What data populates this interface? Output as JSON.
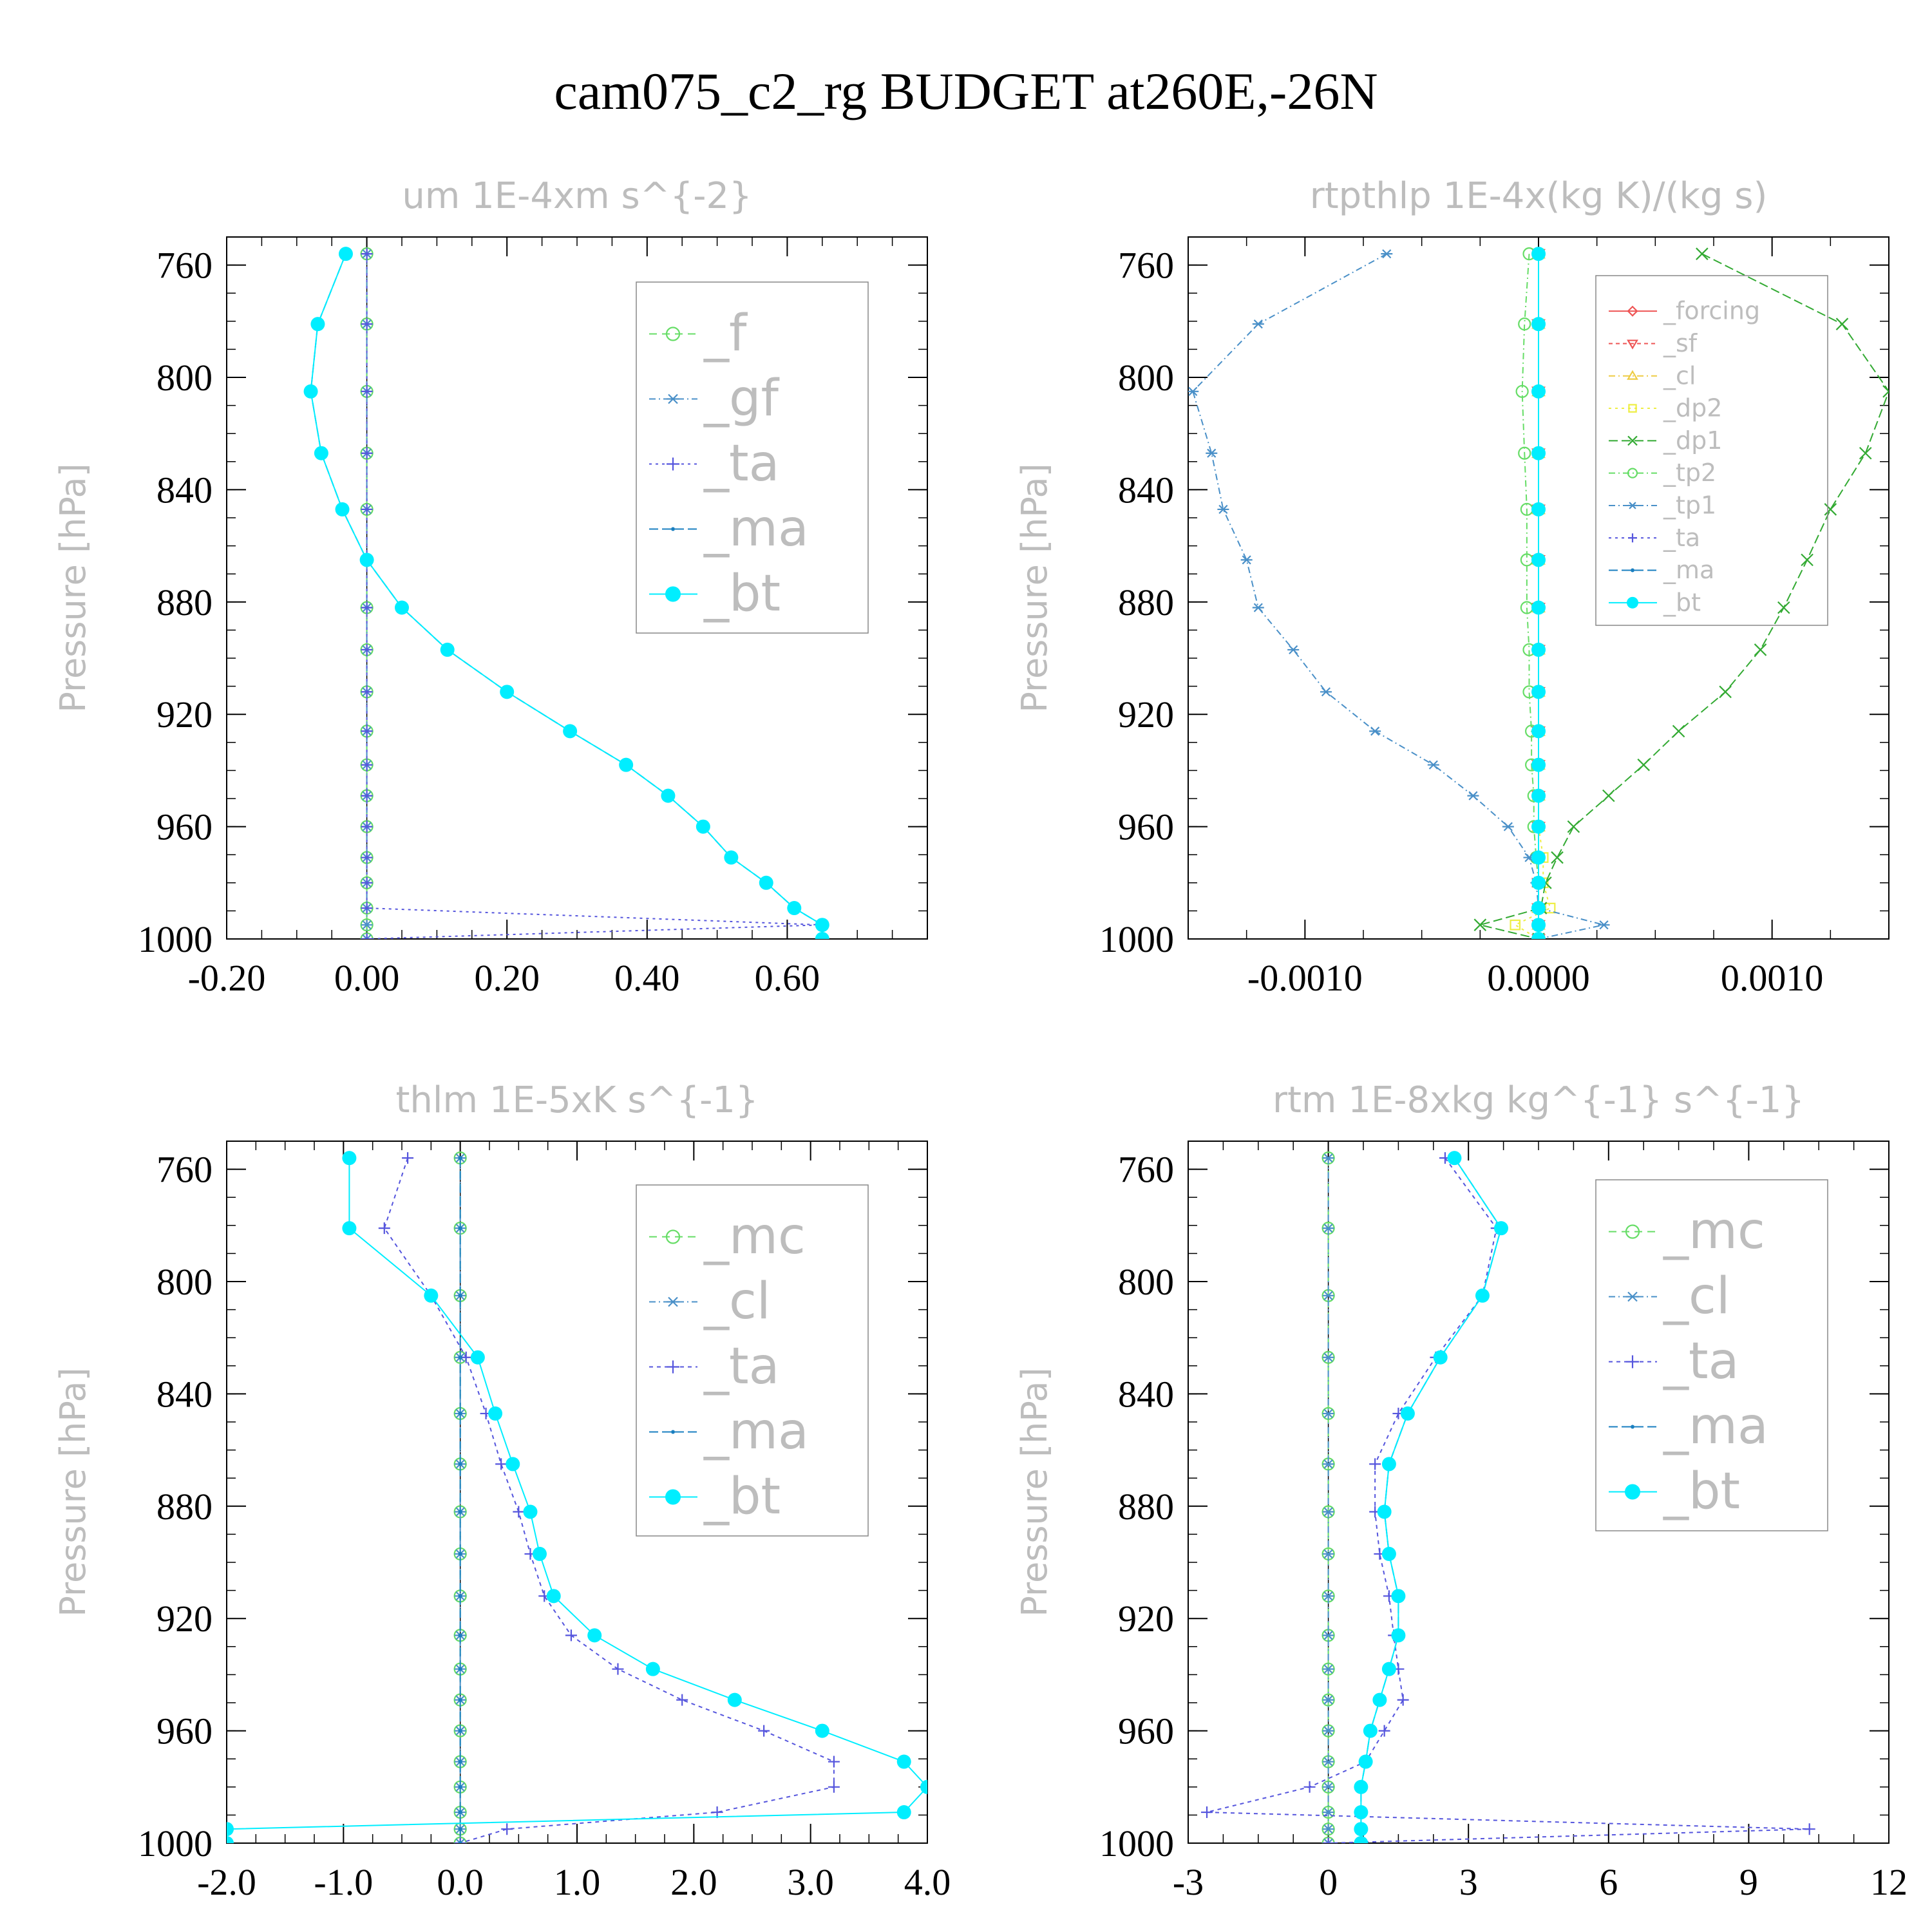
{
  "title": "cam075_c2_rg  BUDGET at260E,-26N",
  "chart_data": [
    {
      "type": "line",
      "title": "um  1E-4xm s^{-2}",
      "ylabel": "Pressure [hPa]",
      "xlim": [
        -0.2,
        0.8
      ],
      "ylim": [
        1000,
        750
      ],
      "xticks": [
        -0.2,
        0.0,
        0.2,
        0.4,
        0.6
      ],
      "xtick_labels": [
        "-0.20",
        "0.00",
        "0.20",
        "0.40",
        "0.60"
      ],
      "yticks": [
        760,
        800,
        840,
        880,
        920,
        960,
        1000
      ],
      "ytick_labels": [
        "760",
        "800",
        "840",
        "880",
        "920",
        "960",
        "1000"
      ],
      "legend": "inside right",
      "levels": [
        756,
        781,
        805,
        827,
        847,
        865,
        882,
        897,
        912,
        926,
        938,
        949,
        960,
        971,
        980,
        989,
        995,
        1000
      ],
      "series": [
        {
          "name": "_f",
          "color": "#66dd66",
          "marker": "circle-open",
          "dash": "12,8",
          "values": [
            0,
            0,
            0,
            0,
            0,
            0,
            0,
            0,
            0,
            0,
            0,
            0,
            0,
            0,
            0,
            0,
            0,
            0
          ]
        },
        {
          "name": "_gf",
          "color": "#4a90c8",
          "marker": "star",
          "dash": "10,5,2,5",
          "values": [
            0,
            0,
            0,
            0,
            0,
            0,
            0,
            0,
            0,
            0,
            0,
            0,
            0,
            0,
            0,
            0,
            0,
            0
          ]
        },
        {
          "name": "_ta",
          "color": "#5555dd",
          "marker": "plus",
          "dash": "4,6",
          "values": [
            0,
            0,
            0,
            0,
            0,
            0,
            0,
            0,
            0,
            0,
            0,
            0,
            0,
            0,
            0,
            0,
            0.65,
            0
          ]
        },
        {
          "name": "_ma",
          "color": "#1a7fc0",
          "marker": "dot",
          "dash": "14,6",
          "values": [
            -0.03,
            -0.07,
            -0.08,
            -0.065,
            -0.035,
            0,
            0.05,
            0.115,
            0.2,
            0.29,
            0.37,
            0.43,
            0.48,
            0.52,
            0.57,
            0.61,
            0.65,
            0.65
          ]
        },
        {
          "name": "_bt",
          "color": "#00eeff",
          "marker": "filled",
          "dash": "",
          "values": [
            -0.03,
            -0.07,
            -0.08,
            -0.065,
            -0.035,
            0,
            0.05,
            0.115,
            0.2,
            0.29,
            0.37,
            0.43,
            0.48,
            0.52,
            0.57,
            0.61,
            0.65,
            0.65
          ]
        }
      ]
    },
    {
      "type": "line",
      "title": "rtpthlp  1E-4x(kg K)/(kg s)",
      "ylabel": "Pressure [hPa]",
      "xlim": [
        -0.0015,
        0.0015
      ],
      "ylim": [
        1000,
        750
      ],
      "xticks": [
        -0.001,
        0.0,
        0.001
      ],
      "xtick_labels": [
        "-0.0010",
        "0.0000",
        "0.0010"
      ],
      "yticks": [
        760,
        800,
        840,
        880,
        920,
        960,
        1000
      ],
      "ytick_labels": [
        "760",
        "800",
        "840",
        "880",
        "920",
        "960",
        "1000"
      ],
      "legend": "inside right",
      "levels": [
        756,
        781,
        805,
        827,
        847,
        865,
        882,
        897,
        912,
        926,
        938,
        949,
        960,
        971,
        980,
        989,
        995,
        1000
      ],
      "series": [
        {
          "name": "_forcing",
          "color": "#ee5555",
          "marker": "diamond",
          "dash": "",
          "values": [
            0,
            0,
            0,
            0,
            0,
            0,
            0,
            0,
            0,
            0,
            0,
            0,
            0,
            0,
            0,
            0,
            0,
            0
          ]
        },
        {
          "name": "_sf",
          "color": "#ee5555",
          "marker": "tri-down",
          "dash": "6,5",
          "values": [
            0,
            0,
            0,
            0,
            0,
            0,
            0,
            0,
            0,
            0,
            0,
            0,
            0,
            0,
            0,
            0,
            0,
            0
          ]
        },
        {
          "name": "_cl",
          "color": "#eecc44",
          "marker": "tri-up",
          "dash": "10,5,2,5",
          "values": [
            0,
            0,
            0,
            0,
            0,
            0,
            0,
            0,
            0,
            0,
            0,
            0,
            0,
            0,
            0,
            0,
            0,
            0
          ]
        },
        {
          "name": "_dp2",
          "color": "#eeee44",
          "marker": "square",
          "dash": "4,6",
          "values": [
            0,
            0,
            0,
            0,
            0,
            0,
            0,
            0,
            0,
            0,
            0,
            0,
            0,
            2e-05,
            2e-05,
            5e-05,
            -0.0001,
            0
          ]
        },
        {
          "name": "_dp1",
          "color": "#33aa33",
          "marker": "x",
          "dash": "14,6",
          "values": [
            0.0007,
            0.0013,
            0.0015,
            0.0014,
            0.00125,
            0.00115,
            0.00105,
            0.00095,
            0.0008,
            0.0006,
            0.00045,
            0.0003,
            0.00015,
            8e-05,
            3e-05,
            1e-05,
            -0.00025,
            0
          ]
        },
        {
          "name": "_tp2",
          "color": "#66dd66",
          "marker": "circle-open",
          "dash": "10,5,2,5",
          "values": [
            -4e-05,
            -6e-05,
            -7e-05,
            -6e-05,
            -5e-05,
            -5e-05,
            -5e-05,
            -4e-05,
            -4e-05,
            -3e-05,
            -3e-05,
            -2e-05,
            -2e-05,
            -1e-05,
            0,
            0,
            0,
            0
          ]
        },
        {
          "name": "_tp1",
          "color": "#4a90c8",
          "marker": "star",
          "dash": "10,5,2,5",
          "values": [
            -0.00065,
            -0.0012,
            -0.00148,
            -0.0014,
            -0.00135,
            -0.00125,
            -0.0012,
            -0.00105,
            -0.00091,
            -0.0007,
            -0.00045,
            -0.00028,
            -0.00013,
            -4e-05,
            -1e-05,
            0,
            0.00028,
            0
          ]
        },
        {
          "name": "_ta",
          "color": "#5555dd",
          "marker": "plus",
          "dash": "4,6",
          "values": [
            0,
            0,
            0,
            0,
            0,
            0,
            0,
            0,
            0,
            0,
            0,
            0,
            0,
            0,
            0,
            0,
            0,
            0
          ]
        },
        {
          "name": "_ma",
          "color": "#1a7fc0",
          "marker": "dot",
          "dash": "14,6",
          "values": [
            0,
            0,
            0,
            0,
            0,
            0,
            0,
            0,
            0,
            0,
            0,
            0,
            0,
            0,
            0,
            0,
            0,
            0
          ]
        },
        {
          "name": "_bt",
          "color": "#00eeff",
          "marker": "filled",
          "dash": "",
          "values": [
            0,
            0,
            0,
            0,
            0,
            0,
            0,
            0,
            0,
            0,
            0,
            0,
            0,
            0,
            0,
            0,
            0,
            0
          ]
        }
      ]
    },
    {
      "type": "line",
      "title": "thlm  1E-5xK s^{-1}",
      "ylabel": "Pressure [hPa]",
      "xlim": [
        -2.0,
        4.0
      ],
      "ylim": [
        1000,
        750
      ],
      "xticks": [
        -2,
        -1,
        0,
        1,
        2,
        3,
        4
      ],
      "xtick_labels": [
        "-2.0",
        "-1.0",
        "0.0",
        "1.0",
        "2.0",
        "3.0",
        "4.0"
      ],
      "yticks": [
        760,
        800,
        840,
        880,
        920,
        960,
        1000
      ],
      "ytick_labels": [
        "760",
        "800",
        "840",
        "880",
        "920",
        "960",
        "1000"
      ],
      "legend": "inside right",
      "levels": [
        756,
        781,
        805,
        827,
        847,
        865,
        882,
        897,
        912,
        926,
        938,
        949,
        960,
        971,
        980,
        989,
        995,
        1000
      ],
      "series": [
        {
          "name": "_mc",
          "color": "#66dd66",
          "marker": "circle-open",
          "dash": "12,8",
          "values": [
            0,
            0,
            0,
            0,
            0,
            0,
            0,
            0,
            0,
            0,
            0,
            0,
            0,
            0,
            0,
            0,
            0,
            0
          ]
        },
        {
          "name": "_cl",
          "color": "#4a90c8",
          "marker": "star",
          "dash": "10,5,2,5",
          "values": [
            0,
            0,
            0,
            0,
            0,
            0,
            0,
            0,
            0,
            0,
            0,
            0,
            0,
            0,
            0,
            0,
            0,
            0
          ]
        },
        {
          "name": "_ta",
          "color": "#5555dd",
          "marker": "plus",
          "dash": "6,6",
          "values": [
            -0.45,
            -0.65,
            -0.25,
            0.05,
            0.22,
            0.35,
            0.5,
            0.6,
            0.72,
            0.95,
            1.35,
            1.9,
            2.6,
            3.2,
            3.2,
            2.2,
            0.4,
            0
          ]
        },
        {
          "name": "_ma",
          "color": "#1a7fc0",
          "marker": "dot",
          "dash": "14,6",
          "values": [
            0,
            0,
            0,
            0,
            0,
            0,
            0,
            0,
            0,
            0,
            0,
            0,
            0,
            0,
            0,
            0,
            0,
            0
          ]
        },
        {
          "name": "_bt",
          "color": "#00eeff",
          "marker": "filled",
          "dash": "",
          "values": [
            -0.95,
            -0.95,
            -0.25,
            0.15,
            0.3,
            0.45,
            0.6,
            0.68,
            0.8,
            1.15,
            1.65,
            2.35,
            3.1,
            3.8,
            4.0,
            3.8,
            -2.0,
            -2.0
          ]
        }
      ]
    },
    {
      "type": "line",
      "title": "rtm  1E-8xkg kg^{-1} s^{-1}",
      "ylabel": "Pressure [hPa]",
      "xlim": [
        -3,
        12
      ],
      "ylim": [
        1000,
        750
      ],
      "xticks": [
        -3,
        0,
        3,
        6,
        9,
        12
      ],
      "xtick_labels": [
        "-3",
        "0",
        "3",
        "6",
        "9",
        "12"
      ],
      "yticks": [
        760,
        800,
        840,
        880,
        920,
        960,
        1000
      ],
      "ytick_labels": [
        "760",
        "800",
        "840",
        "880",
        "920",
        "960",
        "1000"
      ],
      "legend": "inside right",
      "levels": [
        756,
        781,
        805,
        827,
        847,
        865,
        882,
        897,
        912,
        926,
        938,
        949,
        960,
        971,
        980,
        989,
        995,
        1000
      ],
      "series": [
        {
          "name": "_mc",
          "color": "#66dd66",
          "marker": "circle-open",
          "dash": "12,8",
          "values": [
            0,
            0,
            0,
            0,
            0,
            0,
            0,
            0,
            0,
            0,
            0,
            0,
            0,
            0,
            0,
            0,
            0,
            0
          ]
        },
        {
          "name": "_cl",
          "color": "#4a90c8",
          "marker": "star",
          "dash": "10,5,2,5",
          "values": [
            0,
            0,
            0,
            0,
            0,
            0,
            0,
            0,
            0,
            0,
            0,
            0,
            0,
            0,
            0,
            0,
            0,
            0
          ]
        },
        {
          "name": "_ta",
          "color": "#5555dd",
          "marker": "plus",
          "dash": "6,6",
          "values": [
            2.5,
            3.6,
            3.3,
            2.3,
            1.5,
            1.0,
            1.0,
            1.1,
            1.3,
            1.4,
            1.5,
            1.6,
            1.2,
            0.8,
            -0.4,
            -2.6,
            10.3,
            0
          ]
        },
        {
          "name": "_ma",
          "color": "#1a7fc0",
          "marker": "dot",
          "dash": "14,6",
          "values": [
            2.7,
            3.7,
            3.3,
            2.4,
            1.7,
            1.3,
            1.2,
            1.3,
            1.5,
            1.5,
            1.3,
            1.1,
            0.9,
            0.8,
            0.7,
            0.7,
            0.7,
            0.7
          ]
        },
        {
          "name": "_bt",
          "color": "#00eeff",
          "marker": "filled",
          "dash": "",
          "values": [
            2.7,
            3.7,
            3.3,
            2.4,
            1.7,
            1.3,
            1.2,
            1.3,
            1.5,
            1.5,
            1.3,
            1.1,
            0.9,
            0.8,
            0.7,
            0.7,
            0.7,
            0.7
          ]
        }
      ]
    }
  ]
}
